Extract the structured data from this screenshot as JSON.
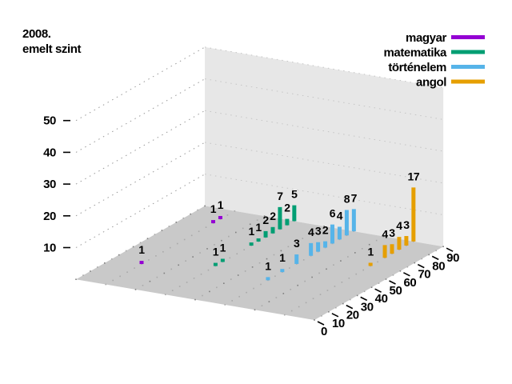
{
  "title": {
    "line1": "2008.",
    "line2": "emelt szint"
  },
  "legend": {
    "position": "top-right",
    "items": [
      {
        "label": "magyar",
        "color": "#9400d3"
      },
      {
        "label": "matematika",
        "color": "#009e73"
      },
      {
        "label": "történelem",
        "color": "#56b4e9"
      },
      {
        "label": "angol",
        "color": "#e69f00"
      }
    ]
  },
  "chart_data": {
    "type": "bar",
    "subtype": "3d-bars",
    "title": "2008. emelt szint",
    "grid": "dotted",
    "legend_position": "top-right",
    "x_axis": {
      "range": [
        0,
        90
      ],
      "ticks": [
        0,
        10,
        20,
        30,
        40,
        50,
        60,
        70,
        80,
        90
      ],
      "bar_step": 5
    },
    "z_axis": {
      "range": [
        0,
        50
      ],
      "ticks": [
        10,
        20,
        30,
        40,
        50
      ]
    },
    "depth_axis": {
      "rows_back_to_front": [
        "magyar",
        "matematika",
        "történelem",
        "angol"
      ]
    },
    "series": [
      {
        "name": "magyar",
        "color": "#9400d3",
        "depth": 3.5,
        "points": [
          {
            "x": 25,
            "value": 1
          },
          {
            "x": 75,
            "value": 1
          },
          {
            "x": 80,
            "value": 1
          }
        ]
      },
      {
        "name": "matematika",
        "color": "#009e73",
        "depth": 2.5,
        "points": [
          {
            "x": 35,
            "value": 1
          },
          {
            "x": 40,
            "value": 1
          },
          {
            "x": 60,
            "value": 1
          },
          {
            "x": 65,
            "value": 1
          },
          {
            "x": 70,
            "value": 2
          },
          {
            "x": 75,
            "value": 2
          },
          {
            "x": 80,
            "value": 7
          },
          {
            "x": 85,
            "value": 2
          },
          {
            "x": 90,
            "value": 5
          }
        ]
      },
      {
        "name": "történelem",
        "color": "#56b4e9",
        "depth": 1.5,
        "points": [
          {
            "x": 30,
            "value": 1
          },
          {
            "x": 40,
            "value": 1
          },
          {
            "x": 50,
            "value": 3
          },
          {
            "x": 60,
            "value": 4
          },
          {
            "x": 65,
            "value": 3
          },
          {
            "x": 70,
            "value": 2
          },
          {
            "x": 75,
            "value": 6
          },
          {
            "x": 80,
            "value": 4
          },
          {
            "x": 85,
            "value": 8
          },
          {
            "x": 90,
            "value": 7
          }
        ]
      },
      {
        "name": "angol",
        "color": "#e69f00",
        "depth": 0.5,
        "points": [
          {
            "x": 60,
            "value": 1
          },
          {
            "x": 70,
            "value": 4
          },
          {
            "x": 75,
            "value": 3
          },
          {
            "x": 80,
            "value": 4
          },
          {
            "x": 85,
            "value": 3
          },
          {
            "x": 90,
            "value": 17
          }
        ]
      }
    ]
  },
  "colors": {
    "background": "#ffffff",
    "floor": "#c9c9c9",
    "wall": "#e7e7e7",
    "floor_dot_major": "#7f7f7f",
    "floor_dot_minor": "#a9a9a9",
    "back_gridline": "#999999",
    "wall_gridline": "#c5c5c5",
    "text": "#000000"
  }
}
